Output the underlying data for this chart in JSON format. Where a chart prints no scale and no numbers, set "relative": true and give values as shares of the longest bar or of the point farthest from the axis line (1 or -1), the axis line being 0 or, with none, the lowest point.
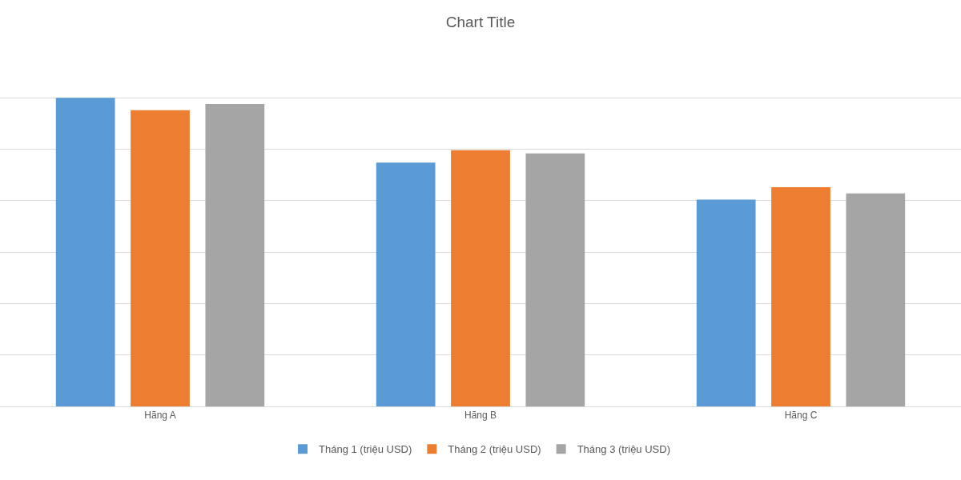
{
  "chart_data": {
    "type": "bar",
    "title": "Chart Title",
    "categories": [
      "Hãng A",
      "Hãng B",
      "Hãng C"
    ],
    "relative": true,
    "grid": "y",
    "legend": "bottom",
    "series": [
      {
        "name": "Tháng 1 (triệu USD)",
        "color": "#5b9bd5",
        "values": [
          1,
          0.79,
          0.67
        ]
      },
      {
        "name": "Tháng 2 (triệu USD)",
        "color": "#ed7d31",
        "values": [
          0.96,
          0.83,
          0.71
        ]
      },
      {
        "name": "Tháng 3 (triệu USD)",
        "color": "#a5a5a5",
        "values": [
          0.98,
          0.82,
          0.69
        ]
      }
    ]
  }
}
